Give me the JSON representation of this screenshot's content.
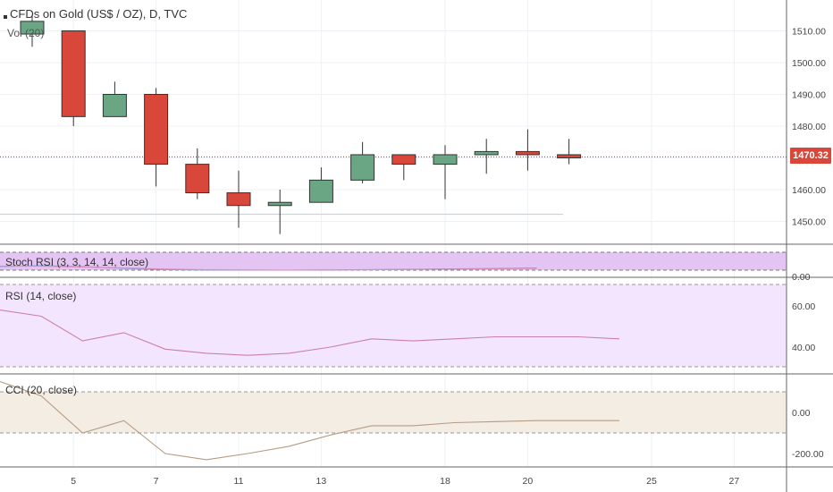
{
  "header": {
    "title": "CFDs on Gold (US$ / OZ), D, TVC",
    "volume_label": "Vol (20)"
  },
  "current_price": "1470.32",
  "colors": {
    "up": "#6aa584",
    "down": "#d9463a",
    "stoch_band": "#e4c4f2",
    "rsi_band": "#f3e5fd",
    "cci_band": "#f3ede4",
    "rsi_line": "#cc7faa",
    "cci_line": "#b79b82",
    "price_line": "#c0392b"
  },
  "panes": {
    "stoch_label": "Stoch RSI (3, 3, 14, 14, close)",
    "rsi_label": "RSI (14, close)",
    "cci_label": "CCI (20, close)"
  },
  "chart_data": {
    "type": "candlestick",
    "x_tick_labels": [
      "5",
      "7",
      "11",
      "13",
      "18",
      "20",
      "25",
      "27"
    ],
    "price_axis": {
      "ticks": [
        1510,
        1500,
        1490,
        1480,
        1470,
        1460,
        1450
      ],
      "tick_labels": [
        "1510.00",
        "1500.00",
        "1490.00",
        "1480.00",
        "1470.00",
        "1460.00",
        "1450.00"
      ],
      "range": [
        1442,
        1520
      ]
    },
    "candles": [
      {
        "date": "4",
        "open": 1509,
        "high": 1515,
        "low": 1505,
        "close": 1513
      },
      {
        "date": "5",
        "open": 1510,
        "high": 1510,
        "low": 1480,
        "close": 1483
      },
      {
        "date": "6",
        "open": 1483,
        "high": 1494,
        "low": 1483,
        "close": 1490
      },
      {
        "date": "7",
        "open": 1490,
        "high": 1492,
        "low": 1461,
        "close": 1468
      },
      {
        "date": "8",
        "open": 1468,
        "high": 1473,
        "low": 1457,
        "close": 1459
      },
      {
        "date": "11",
        "open": 1459,
        "high": 1466,
        "low": 1448,
        "close": 1455
      },
      {
        "date": "12",
        "open": 1455,
        "high": 1460,
        "low": 1446,
        "close": 1456
      },
      {
        "date": "13",
        "open": 1456,
        "high": 1467,
        "low": 1456,
        "close": 1463
      },
      {
        "date": "14",
        "open": 1463,
        "high": 1475,
        "low": 1462,
        "close": 1471
      },
      {
        "date": "15",
        "open": 1471,
        "high": 1471,
        "low": 1463,
        "close": 1468
      },
      {
        "date": "18",
        "open": 1468,
        "high": 1474,
        "low": 1457,
        "close": 1471
      },
      {
        "date": "19",
        "open": 1471,
        "high": 1476,
        "low": 1465,
        "close": 1472
      },
      {
        "date": "20",
        "open": 1472,
        "high": 1479,
        "low": 1466,
        "close": 1471
      },
      {
        "date": "21",
        "open": 1471,
        "high": 1476,
        "low": 1468,
        "close": 1470
      }
    ],
    "stoch_rsi": {
      "tick_labels": [
        "0.00"
      ],
      "k": [
        20,
        25,
        20,
        10,
        3,
        1,
        0,
        0,
        1,
        3,
        5,
        7,
        9,
        12
      ],
      "d": [
        22,
        22,
        18,
        12,
        6,
        2,
        1,
        0,
        1,
        2,
        4,
        6,
        8,
        10
      ]
    },
    "rsi": {
      "tick_labels": [
        "60.00",
        "40.00"
      ],
      "values": [
        58,
        55,
        43,
        47,
        39,
        37,
        36,
        37,
        40,
        44,
        43,
        44,
        45,
        45,
        45,
        44
      ]
    },
    "cci": {
      "tick_labels": [
        "0.00",
        "-200.00"
      ],
      "values": [
        150,
        80,
        -100,
        -40,
        -200,
        -230,
        -200,
        -165,
        -110,
        -65,
        -65,
        -50,
        -45,
        -40,
        -40,
        -40
      ]
    }
  }
}
